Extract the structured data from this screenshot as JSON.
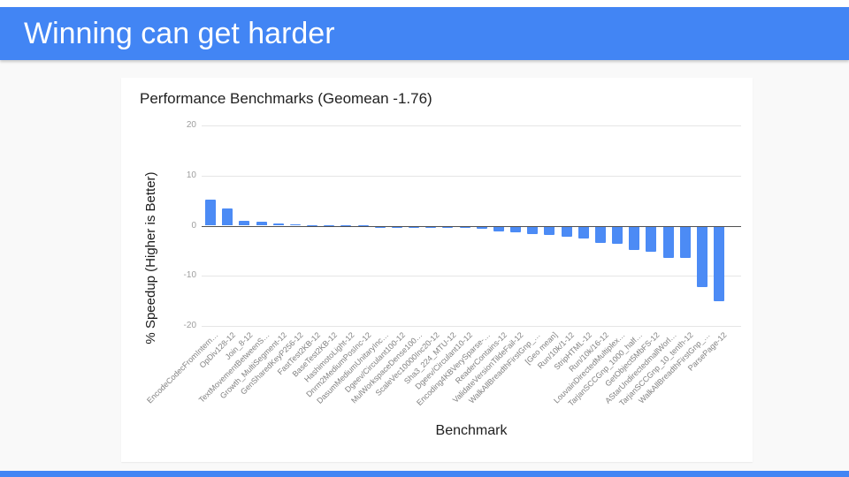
{
  "slide": {
    "title": "Winning can get harder"
  },
  "colors": {
    "header_bg": "#4285f4",
    "accent_bar": "#4285f4",
    "background": "#f9f9f9",
    "card_bg": "#ffffff",
    "bar": "#4c8bf5",
    "gridline": "#e6e6e6",
    "zero_line": "#505050",
    "tick_text": "#9e9e9e",
    "category_text": "#818181",
    "title_text": "#212121"
  },
  "chart_data": {
    "type": "bar",
    "title": "Performance Benchmarks (Geomean -1.76)",
    "xlabel": "Benchmark",
    "ylabel": "% Speedup (Higher is Better)",
    "ylim": [
      -20,
      20
    ],
    "yticks": [
      20,
      10,
      0,
      -10,
      -20
    ],
    "grid": true,
    "legend": false,
    "bar_color": "#4c8bf5",
    "categories": [
      "EncodeCodecFromIntern…",
      "OpDiv128-12",
      "Join_8-12",
      "TextMovementBetweenS…",
      "Growth_MultiSegment-12",
      "GenSharedKeyP256-12",
      "FastTest2KB-12",
      "BaseTest2KB-12",
      "HashimotoLight-12",
      "Dnrm2MediumPosInc-12",
      "DasumMediumUnitaryInc…",
      "Dgeev/Circulant100-12",
      "MulWorkspaceDense100…",
      "ScaleVec10000Inc20-12",
      "Sha3_224_MTU-12",
      "Dgeev/Circulant10-12",
      "Encoding4KBVerySparse-…",
      "ReaderContains-12",
      "ValidateVersionTildeFail-12",
      "WalkAllBreadthFirstGnp_…",
      "[Geo mean]",
      "Run/10k/1-12",
      "StripHTML-12",
      "Run/10k/16-12",
      "LouvainDirectedMultiplex…",
      "TarjanSCCGnp_1000_half…",
      "GetObject5MbFS-12",
      "AStarUndirectedmallWorl…",
      "TarjanSCCGnp_10_tenth-12",
      "WalkAllBreadthFirstGnp_…",
      "ParsePage-12"
    ],
    "values": [
      5.2,
      3.4,
      1.0,
      0.75,
      0.4,
      0.2,
      0.1,
      0.05,
      0.0,
      0.0,
      -0.05,
      -0.05,
      -0.1,
      -0.15,
      -0.3,
      -0.35,
      -0.5,
      -0.9,
      -1.2,
      -1.5,
      -1.76,
      -2.1,
      -2.4,
      -3.2,
      -3.4,
      -4.7,
      -5.0,
      -6.2,
      -6.3,
      -12.1,
      -15.0
    ]
  }
}
